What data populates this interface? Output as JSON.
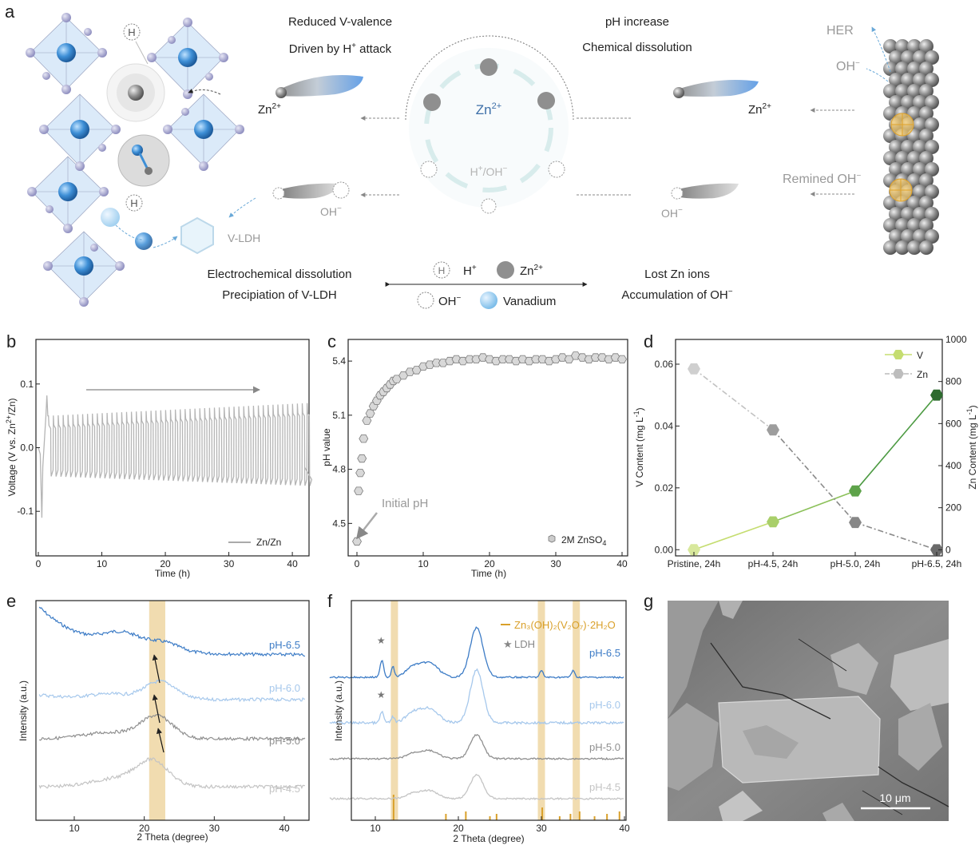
{
  "panel_a": {
    "letter": "a",
    "top_left_1": "Reduced V-valence",
    "top_left_2": "Driven by H",
    "top_left_2_sup": "+",
    "top_left_2_tail": " attack",
    "top_right_1": "pH increase",
    "top_right_2": "Chemical dissolution",
    "zn_left": "Zn",
    "zn_right": "Zn",
    "zn_sup": "2+",
    "circle_zn": "Zn",
    "circle_h_oh": "H",
    "circle_h_oh_tail": "/OH",
    "oh_left": "OH",
    "oh_right": "OH",
    "minus": "−",
    "h_atom": "H",
    "vldh": "V-LDH",
    "her": "HER",
    "oh_top": "OH",
    "remined": "Remined OH",
    "bottom_left_1": "Electrochemical dissolution",
    "bottom_left_2": "Precipiation of V-LDH",
    "bottom_right_1": "Lost Zn ions",
    "bottom_right_2": "Accumulation of OH",
    "legend_h": "H",
    "legend_h_label": "H",
    "legend_zn": "Zn",
    "legend_oh": "OH",
    "legend_v": "Vanadium"
  },
  "chart_data": [
    {
      "panel": "b",
      "type": "line",
      "xlabel": "Time (h)",
      "ylabel": "Voltage (V vs. Zn",
      "ylabel_sup": "2+",
      "ylabel_tail": "/Zn)",
      "xlim": [
        0,
        42
      ],
      "ylim": [
        -0.17,
        0.17
      ],
      "xticks": [
        0,
        10,
        20,
        30,
        40
      ],
      "yticks": [
        -0.1,
        0.0,
        0.1
      ],
      "ytick_labels": [
        "-0.1",
        "0.0",
        "0.1"
      ],
      "series": [
        {
          "name": "Zn/Zn",
          "cycles": 54,
          "upper_start": 0.05,
          "upper_end": 0.07,
          "lower_start": -0.045,
          "lower_end": -0.06
        }
      ],
      "legend": "bottom-right"
    },
    {
      "panel": "c",
      "type": "scatter",
      "xlabel": "Time (h)",
      "ylabel": "pH value",
      "xlim": [
        -0.5,
        40
      ],
      "ylim": [
        4.32,
        5.52
      ],
      "xticks": [
        0,
        10,
        20,
        30,
        40
      ],
      "yticks": [
        4.5,
        4.8,
        5.1,
        5.4
      ],
      "annotation": "Initial pH",
      "legend_label": "2M ZnSO",
      "legend_sub": "4",
      "series": [
        {
          "name": "2M ZnSO4",
          "x": [
            0,
            0.25,
            0.5,
            0.75,
            1,
            1.5,
            2,
            2.5,
            3,
            3.5,
            4,
            4.5,
            5,
            5.5,
            6,
            7,
            8,
            9,
            10,
            11,
            12,
            13,
            14,
            15,
            16,
            17,
            18,
            19,
            20,
            21,
            22,
            23,
            24,
            25,
            26,
            27,
            28,
            29,
            30,
            31,
            32,
            33,
            34,
            35,
            36,
            37,
            38,
            39,
            40
          ],
          "y": [
            4.4,
            4.68,
            4.78,
            4.86,
            4.97,
            5.07,
            5.11,
            5.15,
            5.18,
            5.21,
            5.23,
            5.25,
            5.27,
            5.29,
            5.3,
            5.32,
            5.34,
            5.35,
            5.37,
            5.38,
            5.39,
            5.39,
            5.4,
            5.41,
            5.4,
            5.41,
            5.41,
            5.42,
            5.41,
            5.4,
            5.41,
            5.41,
            5.4,
            5.41,
            5.4,
            5.41,
            5.41,
            5.4,
            5.41,
            5.42,
            5.41,
            5.43,
            5.42,
            5.41,
            5.42,
            5.42,
            5.41,
            5.42,
            5.41
          ]
        }
      ]
    },
    {
      "panel": "d",
      "type": "line",
      "categories": [
        "Pristine, 24h",
        "pH-4.5, 24h",
        "pH-5.0, 24h",
        "pH-6.5, 24h"
      ],
      "ylabel": "V Content (mg L",
      "ylabel_sup": "-1",
      "ylabel_tail": ")",
      "y2label": "Zn Content (mg L",
      "yticks": [
        0.0,
        0.02,
        0.04,
        0.06
      ],
      "ytick_labels": [
        "0.00",
        "0.02",
        "0.04",
        "0.06"
      ],
      "ylim": [
        -0.002,
        0.068
      ],
      "y2ticks": [
        0,
        200,
        400,
        600,
        800,
        1000
      ],
      "y2lim": [
        -29,
        1000
      ],
      "series": [
        {
          "name": "V",
          "axis": "left",
          "values": [
            0.0,
            0.009,
            0.019,
            0.05
          ]
        },
        {
          "name": "Zn",
          "axis": "right",
          "values": [
            860,
            570,
            130,
            0
          ]
        }
      ],
      "legend": "top-right"
    },
    {
      "panel": "e",
      "type": "line",
      "xlabel": "2 Theta (degree)",
      "ylabel": "Intensity (a.u.)",
      "xlim": [
        5,
        43
      ],
      "xticks": [
        10,
        20,
        30,
        40
      ],
      "highlight_x": [
        20.7,
        23
      ],
      "series": [
        {
          "name": "pH-6.5",
          "color": "#3d7cc6",
          "peak_x": 23
        },
        {
          "name": "pH-6.0",
          "color": "#a6c8ec",
          "peak_x": 22.3
        },
        {
          "name": "pH-5.0",
          "color": "#8f8f8f",
          "peak_x": 21.8
        },
        {
          "name": "pH-4.5",
          "color": "#c4c4c4",
          "peak_x": 21.2
        }
      ]
    },
    {
      "panel": "f",
      "type": "line",
      "xlabel": "2 Theta (degree)",
      "ylabel": "Intensity (a.u.)",
      "xlim": [
        4.5,
        40
      ],
      "xticks": [
        10,
        20,
        30,
        40
      ],
      "highlight_x": [
        12.3,
        30.0,
        34.2
      ],
      "legend_ref": "Zn₃(OH)₂(V₂O₇)·2H₂O",
      "legend_ldh": "LDH",
      "reference_peaks": [
        12.2,
        18.5,
        20.9,
        23.8,
        24.6,
        30.1,
        32.2,
        33.5,
        34.6,
        36.4,
        37.9,
        39.4
      ],
      "series": [
        {
          "name": "pH-6.5",
          "color": "#3d7cc6"
        },
        {
          "name": "pH-6.0",
          "color": "#a6c8ec"
        },
        {
          "name": "pH-5.0",
          "color": "#8f8f8f"
        },
        {
          "name": "pH-4.5",
          "color": "#c4c4c4"
        }
      ]
    }
  ],
  "panel_g": {
    "letter": "g",
    "scale_label": "10 μm"
  },
  "letters": {
    "b": "b",
    "c": "c",
    "d": "d",
    "e": "e",
    "f": "f"
  }
}
